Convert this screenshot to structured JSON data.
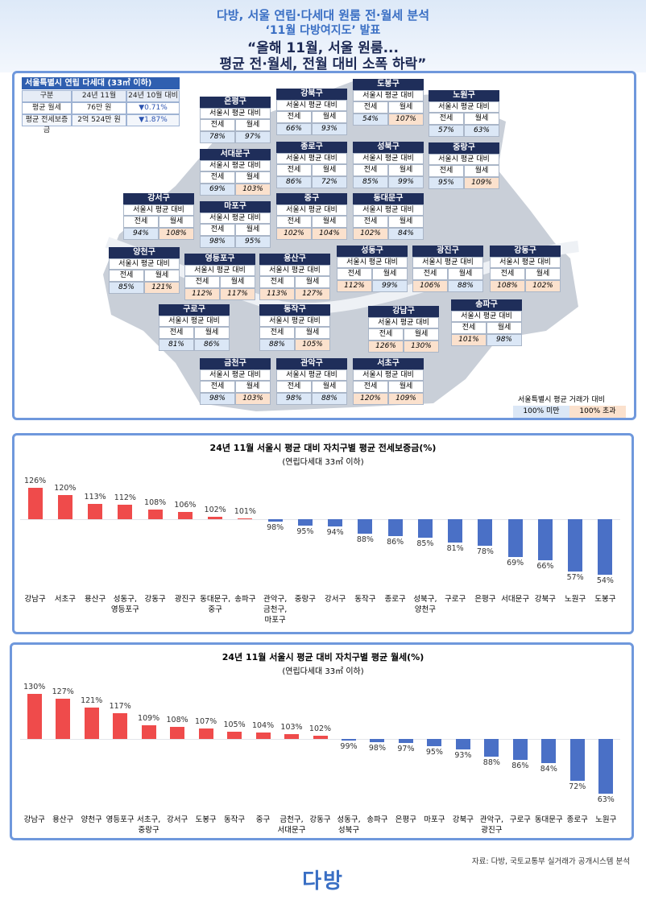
{
  "header": {
    "lines": [
      "다방, 서울 연립·다세대 원룸 전·월세 분석",
      "‘11월 다방여지도’ 발표",
      "“올해 11월, 서울 원룸...",
      "평균 전·월세, 전월 대비 소폭 하락”"
    ]
  },
  "summary": {
    "title": "서울특별시 연립 다세대 (33㎡ 이하)",
    "header": [
      "구분",
      "24년 11월",
      "24년 10월 대비"
    ],
    "rows": [
      [
        "평균 월세",
        "76만 원",
        "▼0.71%"
      ],
      [
        "평균 전세보증금",
        "2억 524만 원",
        "▼1.87%"
      ]
    ]
  },
  "map": {
    "subheader": "서울시 평균 대비",
    "columns": [
      "전세",
      "월세"
    ],
    "districts": [
      {
        "name": "은평구",
        "jeonse": "78%",
        "wolse": "97%"
      },
      {
        "name": "강북구",
        "jeonse": "66%",
        "wolse": "93%"
      },
      {
        "name": "도봉구",
        "jeonse": "54%",
        "wolse": "107%"
      },
      {
        "name": "노원구",
        "jeonse": "57%",
        "wolse": "63%"
      },
      {
        "name": "서대문구",
        "jeonse": "69%",
        "wolse": "103%"
      },
      {
        "name": "종로구",
        "jeonse": "86%",
        "wolse": "72%"
      },
      {
        "name": "성북구",
        "jeonse": "85%",
        "wolse": "99%"
      },
      {
        "name": "중랑구",
        "jeonse": "95%",
        "wolse": "109%"
      },
      {
        "name": "강서구",
        "jeonse": "94%",
        "wolse": "108%"
      },
      {
        "name": "마포구",
        "jeonse": "98%",
        "wolse": "95%"
      },
      {
        "name": "중구",
        "jeonse": "102%",
        "wolse": "104%"
      },
      {
        "name": "동대문구",
        "jeonse": "102%",
        "wolse": "84%"
      },
      {
        "name": "양천구",
        "jeonse": "85%",
        "wolse": "121%"
      },
      {
        "name": "영등포구",
        "jeonse": "112%",
        "wolse": "117%"
      },
      {
        "name": "용산구",
        "jeonse": "113%",
        "wolse": "127%"
      },
      {
        "name": "성동구",
        "jeonse": "112%",
        "wolse": "99%"
      },
      {
        "name": "광진구",
        "jeonse": "106%",
        "wolse": "88%"
      },
      {
        "name": "강동구",
        "jeonse": "108%",
        "wolse": "102%"
      },
      {
        "name": "구로구",
        "jeonse": "81%",
        "wolse": "86%"
      },
      {
        "name": "동작구",
        "jeonse": "88%",
        "wolse": "105%"
      },
      {
        "name": "강남구",
        "jeonse": "126%",
        "wolse": "130%"
      },
      {
        "name": "송파구",
        "jeonse": "101%",
        "wolse": "98%"
      },
      {
        "name": "금천구",
        "jeonse": "98%",
        "wolse": "103%"
      },
      {
        "name": "관악구",
        "jeonse": "98%",
        "wolse": "88%"
      },
      {
        "name": "서초구",
        "jeonse": "120%",
        "wolse": "109%"
      }
    ],
    "legend": {
      "title": "서울특별시 평균 거래가 대비",
      "items": [
        "100% 미만",
        "100% 초과"
      ]
    }
  },
  "chart_data": [
    {
      "type": "bar",
      "title": "24년 11월 서울시 평균 대비 자치구별 평균 전세보증금(%)",
      "subtitle": "(연립다세대 33㎡ 이하)",
      "categories": [
        "강남구",
        "서초구",
        "용산구",
        "성동구,\n영등포구",
        "강동구",
        "광진구",
        "동대문구,\n중구",
        "송파구",
        "관악구,\n금천구,\n마포구",
        "중랑구",
        "강서구",
        "동작구",
        "종로구",
        "성북구,\n양천구",
        "구로구",
        "은평구",
        "서대문구",
        "강북구",
        "노원구",
        "도봉구"
      ],
      "values": [
        126,
        120,
        113,
        112,
        108,
        106,
        102,
        101,
        98,
        95,
        94,
        88,
        86,
        85,
        81,
        78,
        69,
        66,
        57,
        54
      ],
      "value_labels": [
        "126%",
        "120%",
        "113%",
        "112%",
        "108%",
        "106%",
        "102%",
        "101%",
        "98%",
        "95%",
        "94%",
        "88%",
        "86%",
        "85%",
        "81%",
        "78%",
        "69%",
        "66%",
        "57%",
        "54%"
      ],
      "ylim": [
        50,
        130
      ],
      "baseline": 100,
      "color_above": "#ef4b4b",
      "color_below": "#4a70c6"
    },
    {
      "type": "bar",
      "title": "24년 11월 서울시 평균 대비 자치구별 평균 월세(%)",
      "subtitle": "(연립다세대 33㎡ 이하)",
      "categories": [
        "강남구",
        "용산구",
        "양천구",
        "영등포구",
        "서초구,\n중랑구",
        "강서구",
        "도봉구",
        "동작구",
        "중구",
        "금천구,\n서대문구",
        "강동구",
        "성동구,\n성북구",
        "송파구",
        "은평구",
        "마포구",
        "강북구",
        "관악구,\n광진구",
        "구로구",
        "동대문구",
        "종로구",
        "노원구"
      ],
      "values": [
        130,
        127,
        121,
        117,
        109,
        108,
        107,
        105,
        104,
        103,
        102,
        99,
        98,
        97,
        95,
        93,
        88,
        86,
        84,
        72,
        63
      ],
      "value_labels": [
        "130%",
        "127%",
        "121%",
        "117%",
        "109%",
        "108%",
        "107%",
        "105%",
        "104%",
        "103%",
        "102%",
        "99%",
        "98%",
        "97%",
        "95%",
        "93%",
        "88%",
        "86%",
        "84%",
        "72%",
        "63%"
      ],
      "ylim": [
        60,
        135
      ],
      "baseline": 100,
      "color_above": "#ef4b4b",
      "color_below": "#4a70c6"
    }
  ],
  "footer": {
    "source": "자료: 다방, 국토교통부 실거래가 공개시스템 분석",
    "logo": "다방"
  }
}
